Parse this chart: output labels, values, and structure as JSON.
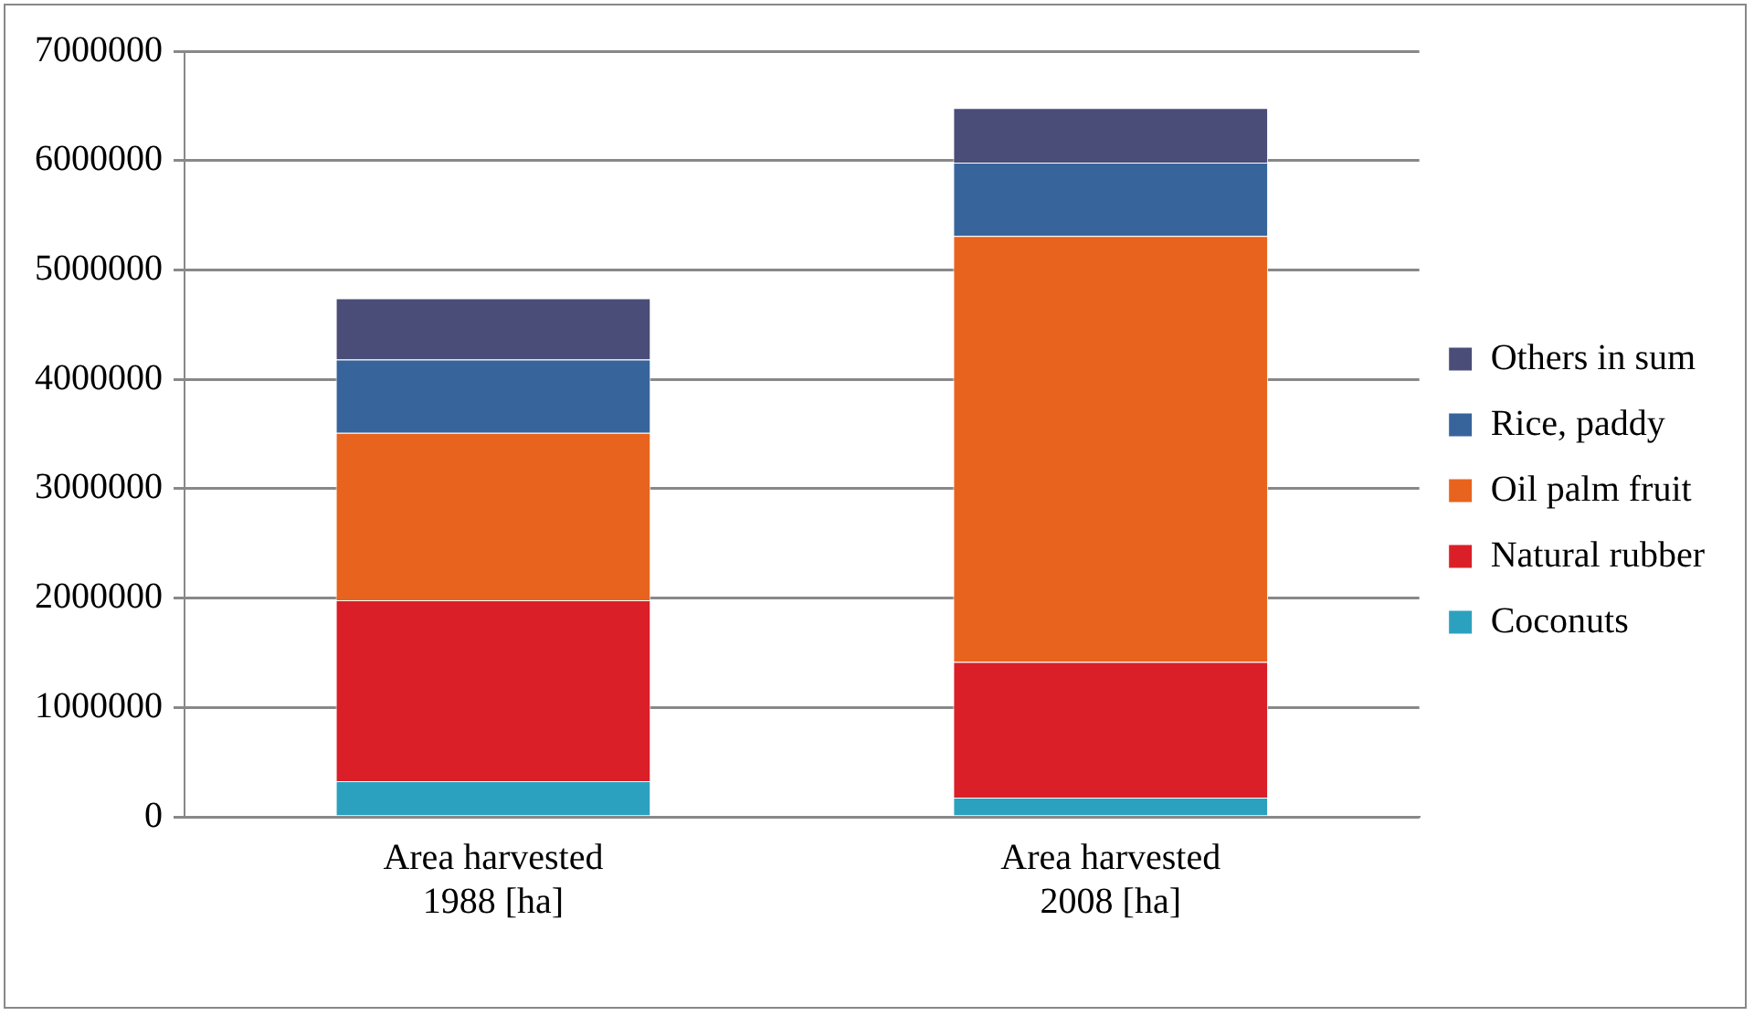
{
  "chart_data": {
    "type": "bar",
    "stacked": true,
    "categories": [
      "Area harvested 1988 [ha]",
      "Area harvested 2008 [ha]"
    ],
    "series": [
      {
        "name": "Coconuts",
        "color": "#2ca1bf",
        "values": [
          325000,
          175000
        ]
      },
      {
        "name": "Natural rubber",
        "color": "#da1f28",
        "values": [
          1655000,
          1240000
        ]
      },
      {
        "name": "Oil palm fruit",
        "color": "#e8641e",
        "values": [
          1530000,
          3895000
        ]
      },
      {
        "name": "Rice, paddy",
        "color": "#38649c",
        "values": [
          670000,
          670000
        ]
      },
      {
        "name": "Others in sum",
        "color": "#4a4d78",
        "values": [
          560000,
          500000
        ]
      }
    ],
    "ylim": [
      0,
      7000000
    ],
    "yticks": [
      0,
      1000000,
      2000000,
      3000000,
      4000000,
      5000000,
      6000000,
      7000000
    ],
    "grid": "y",
    "legend": "right"
  }
}
